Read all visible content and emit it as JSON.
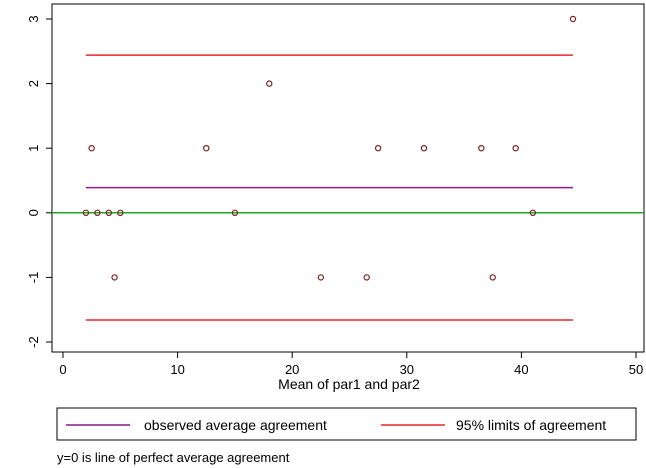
{
  "chart_data": {
    "type": "scatter",
    "title": "",
    "xlabel": "Mean of par1 and par2",
    "ylabel": "",
    "xlim": [
      0,
      50
    ],
    "ylim": [
      -2.2,
      3.1
    ],
    "x_ticks": [
      0,
      10,
      20,
      30,
      40,
      50
    ],
    "y_ticks": [
      -2,
      -1,
      0,
      1,
      2,
      3
    ],
    "grid": false,
    "legend_position": "bottom",
    "points": [
      {
        "x": 2.0,
        "y": 0
      },
      {
        "x": 2.5,
        "y": 1
      },
      {
        "x": 3.0,
        "y": 0
      },
      {
        "x": 4.0,
        "y": 0
      },
      {
        "x": 4.5,
        "y": -1
      },
      {
        "x": 5.0,
        "y": 0
      },
      {
        "x": 12.5,
        "y": 1
      },
      {
        "x": 15.0,
        "y": 0
      },
      {
        "x": 18.0,
        "y": 2
      },
      {
        "x": 22.5,
        "y": -1
      },
      {
        "x": 26.5,
        "y": -1
      },
      {
        "x": 27.5,
        "y": 1
      },
      {
        "x": 31.5,
        "y": 1
      },
      {
        "x": 36.5,
        "y": 1
      },
      {
        "x": 37.5,
        "y": -1
      },
      {
        "x": 39.5,
        "y": 1
      },
      {
        "x": 41.0,
        "y": 0
      },
      {
        "x": 44.5,
        "y": 3
      }
    ],
    "reference_lines": [
      {
        "name": "observed average agreement",
        "y": 0.39,
        "x_start": 2.0,
        "x_end": 44.5,
        "color": "#8b1a8b"
      },
      {
        "name": "95% limits of agreement",
        "y": 2.44,
        "x_start": 2.0,
        "x_end": 44.5,
        "color": "#e8262a"
      },
      {
        "name": "95% limits of agreement",
        "y": -1.66,
        "x_start": 2.0,
        "x_end": 44.5,
        "color": "#e8262a"
      },
      {
        "name": "y=0 is line of perfect average agreement",
        "y": 0,
        "color": "#1fa81f"
      }
    ],
    "legend": [
      {
        "label": "observed average agreement",
        "color": "#8b1a8b"
      },
      {
        "label": "95% limits of agreement",
        "color": "#e8262a"
      }
    ],
    "note": "y=0 is line of perfect average agreement",
    "marker_color": "#7a1f1f"
  }
}
